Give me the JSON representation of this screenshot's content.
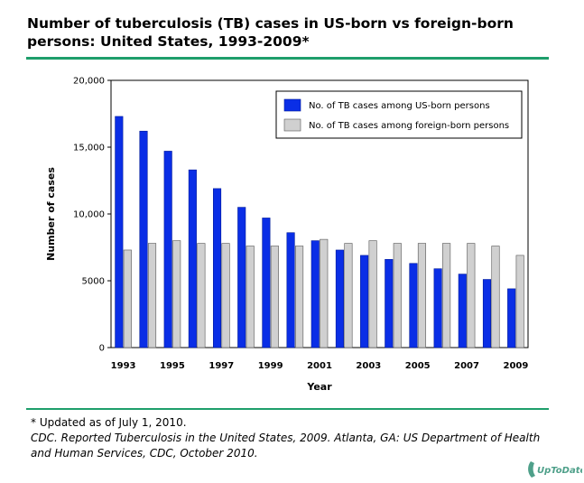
{
  "title_line1": "Number of tuberculosis (TB) cases in US-born vs foreign-born",
  "title_line2": "persons: United States, 1993-2009*",
  "footnote_line1": "* Updated as of July 1, 2010.",
  "footnote_ref": "CDC. Reported Tuberculosis in the United States, 2009. Atlanta, GA: US Department of Health and Human Services, CDC, October 2010.",
  "logo_text": "UpToDate",
  "colors": {
    "us_born": "#0a2ee6",
    "foreign_born": "#d0d0d0",
    "rule": "#1e9e6b",
    "logo": "#4fa08a"
  },
  "chart_data": {
    "type": "bar",
    "categories": [
      "1993",
      "1994",
      "1995",
      "1996",
      "1997",
      "1998",
      "1999",
      "2000",
      "2001",
      "2002",
      "2003",
      "2004",
      "2005",
      "2006",
      "2007",
      "2008",
      "2009"
    ],
    "x_tick_labels": [
      "1993",
      "",
      "1995",
      "",
      "1997",
      "",
      "1999",
      "",
      "2001",
      "",
      "2003",
      "",
      "2005",
      "",
      "2007",
      "",
      "2009"
    ],
    "series": [
      {
        "name": "No. of TB cases among US-born persons",
        "values": [
          17300,
          16200,
          14700,
          13300,
          11900,
          10500,
          9700,
          8600,
          8000,
          7300,
          6900,
          6600,
          6300,
          5900,
          5500,
          5100,
          4400
        ]
      },
      {
        "name": "No. of TB cases among foreign-born persons",
        "values": [
          7300,
          7800,
          8000,
          7800,
          7800,
          7600,
          7600,
          7600,
          8100,
          7800,
          8000,
          7800,
          7800,
          7800,
          7800,
          7600,
          6900
        ]
      }
    ],
    "xlabel": "Year",
    "ylabel": "Number of cases",
    "ylim": [
      0,
      20000
    ],
    "y_ticks": [
      0,
      5000,
      10000,
      15000,
      20000
    ],
    "y_tick_labels": [
      "0",
      "5000",
      "10,000",
      "15,000",
      "20,000"
    ],
    "legend_position": "top-right",
    "grid": false
  }
}
